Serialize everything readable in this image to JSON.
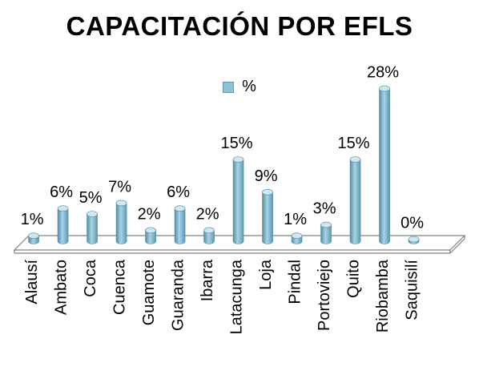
{
  "chart_data": {
    "type": "bar",
    "title": "CAPACITACIÓN POR EFLS",
    "xlabel": "",
    "ylabel": "",
    "legend": "top",
    "ylim": [
      0,
      30
    ],
    "grid": false,
    "categories": [
      "Alausí",
      "Ambato",
      "Coca",
      "Cuenca",
      "Guamote",
      "Guaranda",
      "Ibarra",
      "Latacunga",
      "Loja",
      "Pindal",
      "Portoviejo",
      "Quito",
      "Riobamba",
      "Saquisilí"
    ],
    "series": [
      {
        "name": "%",
        "values": [
          1,
          6,
          5,
          7,
          2,
          6,
          2,
          15,
          9,
          1,
          3,
          15,
          28,
          0
        ],
        "labels": [
          "1%",
          "6%",
          "5%",
          "7%",
          "2%",
          "6%",
          "2%",
          "15%",
          "9%",
          "1%",
          "3%",
          "15%",
          "28%",
          "0%"
        ]
      }
    ],
    "colors": {
      "bar": "#8fc1d4",
      "bar_dark": "#4f8fa8",
      "bar_light": "#cfe7f0",
      "floor": "#ffffff",
      "floor_edge": "#7f7f7f"
    }
  }
}
